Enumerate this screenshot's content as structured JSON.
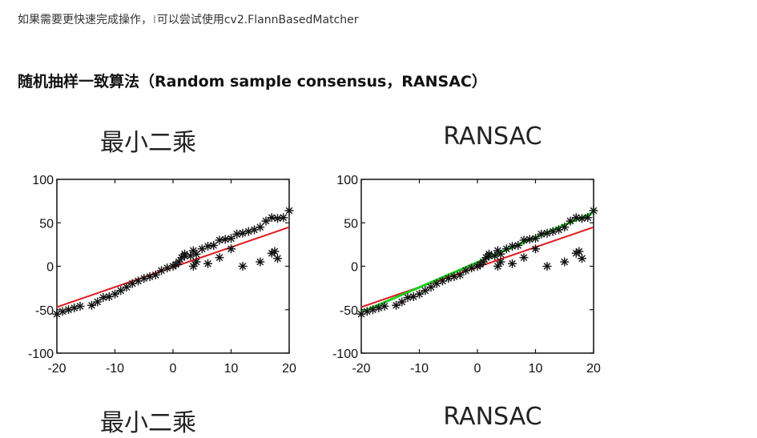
{
  "intro": {
    "before_cursor": "如果需要更快速完成操作，",
    "after_cursor": "可以尝试使用cv2.FlannBasedMatcher"
  },
  "section": {
    "title": "随机抽样一致算法（Random sample consensus，RANSAC）"
  },
  "figures": [
    {
      "title": "最小二乘",
      "caption": "最小二乘"
    },
    {
      "title": "RANSAC",
      "caption": "RANSAC"
    }
  ],
  "colors": {
    "points": "#111111",
    "least_squares_line": "#e0191e",
    "ransac_line": "#19d219"
  },
  "chart_data": [
    {
      "type": "scatter",
      "title": "最小二乘",
      "xlim": [
        -20,
        20
      ],
      "ylim": [
        -100,
        100
      ],
      "xticks": [
        -20,
        -10,
        0,
        10,
        20
      ],
      "yticks": [
        100,
        50,
        0,
        -50,
        -100
      ],
      "series": [
        {
          "marker": "*",
          "x": [
            -20,
            -19,
            -18,
            -17,
            -16,
            -14,
            -13,
            -12,
            -11,
            -10,
            -9,
            -8,
            -7,
            -6,
            -5,
            -4,
            -3,
            -2,
            -1,
            0,
            0.5,
            1,
            1.5,
            2,
            3,
            3.5,
            4,
            5,
            6,
            7,
            8,
            9,
            10,
            11,
            12,
            13,
            14,
            15,
            16,
            17,
            18,
            19,
            20,
            2,
            3.5,
            4,
            6,
            8,
            10,
            12,
            15,
            17,
            17.5,
            18
          ],
          "y": [
            -55,
            -52,
            -50,
            -48,
            -46,
            -45,
            -41,
            -36,
            -35,
            -32,
            -28,
            -24,
            -20,
            -17,
            -14,
            -12,
            -10,
            -5,
            -2,
            0,
            2,
            5,
            10,
            14,
            12,
            18,
            14,
            20,
            23,
            24,
            30,
            31,
            32,
            37,
            38,
            40,
            42,
            45,
            52,
            56,
            55,
            56,
            64,
            12,
            0,
            5,
            3,
            10,
            20,
            0,
            5,
            15,
            17,
            9
          ]
        },
        {
          "type": "line",
          "fit": "least_squares",
          "x": [
            -20,
            20
          ],
          "y": [
            -47,
            45
          ]
        }
      ]
    },
    {
      "type": "scatter",
      "title": "RANSAC",
      "xlim": [
        -20,
        20
      ],
      "ylim": [
        -100,
        100
      ],
      "xticks": [
        -20,
        -10,
        0,
        10,
        20
      ],
      "yticks": [
        100,
        50,
        0,
        -50,
        -100
      ],
      "series": [
        {
          "marker": "*",
          "x": [
            -20,
            -19,
            -18,
            -17,
            -16,
            -14,
            -13,
            -12,
            -11,
            -10,
            -9,
            -8,
            -7,
            -6,
            -5,
            -4,
            -3,
            -2,
            -1,
            0,
            0.5,
            1,
            1.5,
            2,
            3,
            3.5,
            4,
            5,
            6,
            7,
            8,
            9,
            10,
            11,
            12,
            13,
            14,
            15,
            16,
            17,
            18,
            19,
            20,
            2,
            3.5,
            4,
            6,
            8,
            10,
            12,
            15,
            17,
            17.5,
            18
          ],
          "y": [
            -55,
            -52,
            -50,
            -48,
            -46,
            -45,
            -41,
            -36,
            -35,
            -32,
            -28,
            -24,
            -20,
            -17,
            -14,
            -12,
            -10,
            -5,
            -2,
            0,
            2,
            5,
            10,
            14,
            12,
            18,
            14,
            20,
            23,
            24,
            30,
            31,
            32,
            37,
            38,
            40,
            42,
            45,
            52,
            56,
            55,
            56,
            64,
            12,
            0,
            5,
            3,
            10,
            20,
            0,
            5,
            15,
            17,
            9
          ]
        },
        {
          "type": "line",
          "fit": "least_squares",
          "x": [
            -20,
            20
          ],
          "y": [
            -47,
            45
          ]
        },
        {
          "type": "line",
          "fit": "ransac",
          "x": [
            -20,
            20
          ],
          "y": [
            -53,
            62
          ]
        }
      ]
    }
  ]
}
